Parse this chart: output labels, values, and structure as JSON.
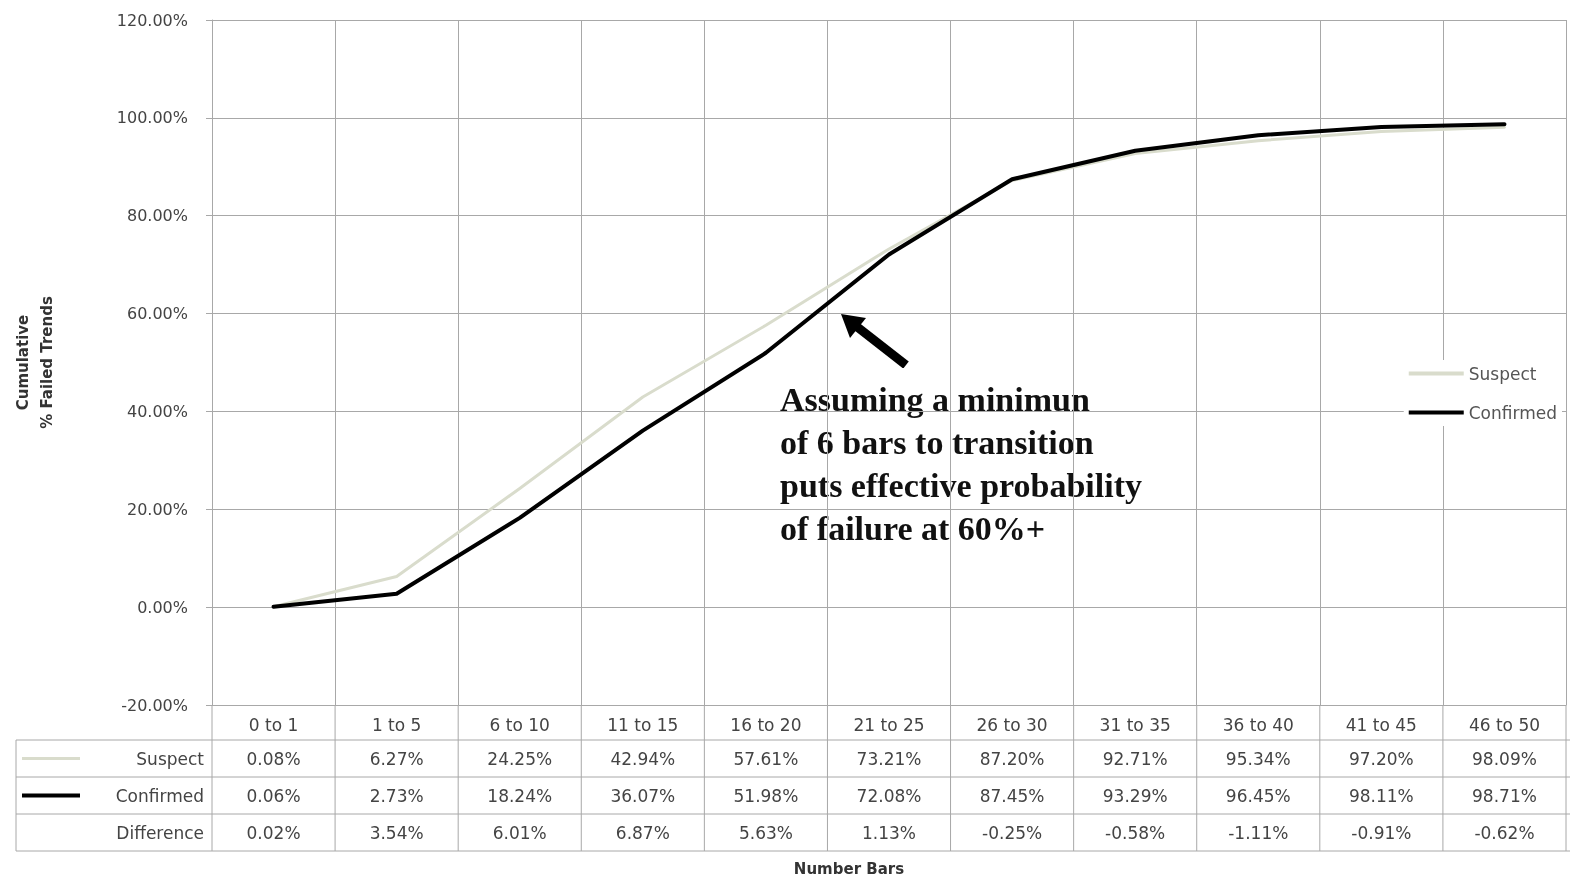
{
  "chart_data": {
    "type": "line",
    "ylabel": "Cumulative\n% Failed Trends",
    "categories": [
      "0 to 1",
      "1 to 5",
      "6 to 10",
      "11 to 15",
      "16 to 20",
      "21 to 25",
      "26 to 30",
      "31 to 35",
      "36 to 40",
      "41 to 45",
      "46 to 50"
    ],
    "series": [
      {
        "name": "Suspect",
        "color": "#d9dccc",
        "values": [
          0.08,
          6.27,
          24.25,
          42.94,
          57.61,
          73.21,
          87.2,
          92.71,
          95.34,
          97.2,
          98.09
        ],
        "value_labels": [
          "0.08%",
          "6.27%",
          "24.25%",
          "42.94%",
          "57.61%",
          "73.21%",
          "87.20%",
          "92.71%",
          "95.34%",
          "97.20%",
          "98.09%"
        ]
      },
      {
        "name": "Confirmed",
        "color": "#000000",
        "values": [
          0.06,
          2.73,
          18.24,
          36.07,
          51.98,
          72.08,
          87.45,
          93.29,
          96.45,
          98.11,
          98.71
        ],
        "value_labels": [
          "0.06%",
          "2.73%",
          "18.24%",
          "36.07%",
          "51.98%",
          "72.08%",
          "87.45%",
          "93.29%",
          "96.45%",
          "98.11%",
          "98.71%"
        ]
      }
    ],
    "ylim": [
      -20,
      120
    ],
    "yticks": [
      {
        "value": -20,
        "label": "-20.00%"
      },
      {
        "value": 0,
        "label": "0.00%"
      },
      {
        "value": 20,
        "label": "20.00%"
      },
      {
        "value": 40,
        "label": "40.00%"
      },
      {
        "value": 60,
        "label": "60.00%"
      },
      {
        "value": 80,
        "label": "80.00%"
      },
      {
        "value": 100,
        "label": "100.00%"
      },
      {
        "value": 120,
        "label": "120.00%"
      }
    ],
    "grid": true,
    "legend": "right",
    "marker": "none",
    "line_style": "solid",
    "annotations": [
      "Assuming a minimun\nof 6 bars to transition\nputs effective probability\nof failure at 60%+",
      "Number Bars",
      "Difference",
      "0.02%",
      "3.54%",
      "6.01%",
      "6.87%",
      "5.63%",
      "1.13%",
      "-0.25%",
      "-0.58%",
      "-1.11%",
      "-0.91%",
      "-0.62%"
    ]
  }
}
